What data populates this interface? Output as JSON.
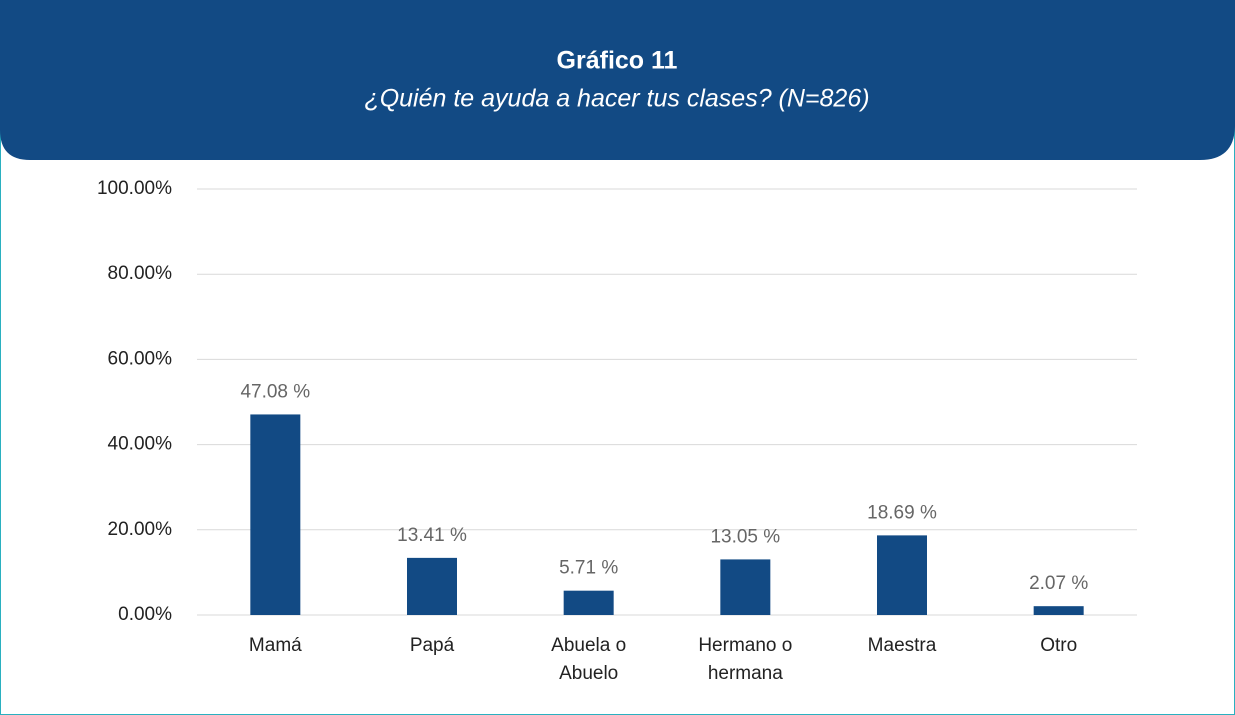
{
  "chart_data": {
    "type": "bar",
    "title": "Gráfico 11",
    "subtitle": "¿Quién te ayuda a hacer tus clases? (N=826)",
    "categories": [
      "Mamá",
      "Papá",
      "Abuela o Abuelo",
      "Hermano o hermana",
      "Maestra",
      "Otro"
    ],
    "values": [
      47.08,
      13.41,
      5.71,
      13.05,
      18.69,
      2.07
    ],
    "value_labels": [
      "47.08 %",
      "13.41 %",
      "5.71 %",
      "13.05 %",
      "18.69 %",
      "2.07 %"
    ],
    "color": "#124a84",
    "ylim": [
      0,
      100
    ],
    "yticks": [
      {
        "value": 0,
        "label": "0.00%"
      },
      {
        "value": 20,
        "label": "20.00%"
      },
      {
        "value": 40,
        "label": "40.00%"
      },
      {
        "value": 60,
        "label": "60.00%"
      },
      {
        "value": 80,
        "label": "80.00%"
      },
      {
        "value": 100,
        "label": "100.00%"
      }
    ],
    "grid": true
  }
}
